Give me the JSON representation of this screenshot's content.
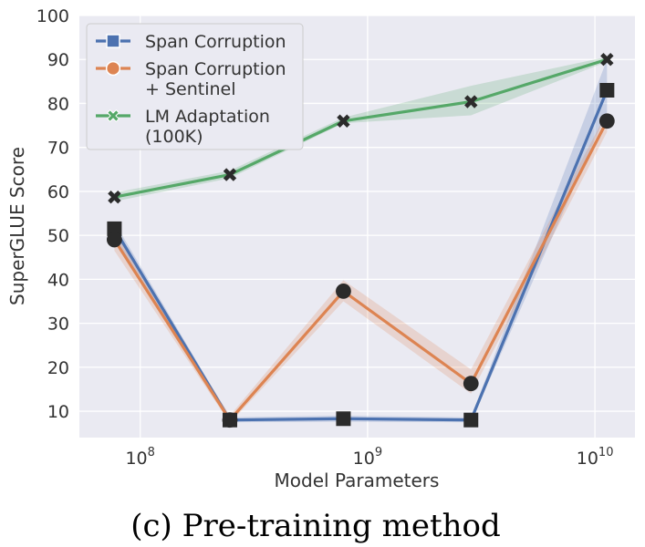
{
  "chart_data": {
    "type": "line",
    "x_scale": "log",
    "xlabel": "Model Parameters",
    "ylabel": "SuperGLUE Score",
    "caption": "(c) Pre-training method",
    "xlim": [
      54000000,
      15000000000
    ],
    "ylim": [
      4,
      100
    ],
    "grid": true,
    "legend_position": "top-left",
    "x_ticks": [
      {
        "value": 100000000,
        "base": "10",
        "exp": "8"
      },
      {
        "value": 1000000000,
        "base": "10",
        "exp": "9"
      },
      {
        "value": 10000000000,
        "base": "10",
        "exp": "10"
      }
    ],
    "y_ticks": [
      10,
      20,
      30,
      40,
      50,
      60,
      70,
      80,
      90,
      100
    ],
    "x": [
      77000000,
      248000000,
      783000000,
      2850000000,
      11300000000
    ],
    "series": [
      {
        "name": "Span Corruption",
        "color": "#4c72b0",
        "marker": "square",
        "values": [
          51.5,
          8.0,
          8.3,
          8.0,
          83.0
        ],
        "band_low": [
          49.0,
          7.5,
          7.6,
          7.5,
          78.0
        ],
        "band_high": [
          53.0,
          8.6,
          9.0,
          8.6,
          90.0
        ]
      },
      {
        "name": "Span Corruption\n+ Sentinel",
        "color": "#dd8452",
        "marker": "circle",
        "values": [
          49.0,
          8.0,
          37.3,
          16.3,
          76.0
        ],
        "band_low": [
          46.5,
          7.3,
          35.0,
          14.0,
          73.5
        ],
        "band_high": [
          51.0,
          9.0,
          39.8,
          19.5,
          78.0
        ]
      },
      {
        "name": "LM Adaptation\n(100K)",
        "color": "#55a868",
        "marker": "x",
        "values": [
          58.7,
          63.8,
          76.0,
          80.4,
          90.0
        ],
        "band_low": [
          57.7,
          63.0,
          75.5,
          77.3,
          89.5
        ],
        "band_high": [
          59.7,
          64.7,
          76.8,
          84.0,
          90.6
        ]
      }
    ]
  }
}
